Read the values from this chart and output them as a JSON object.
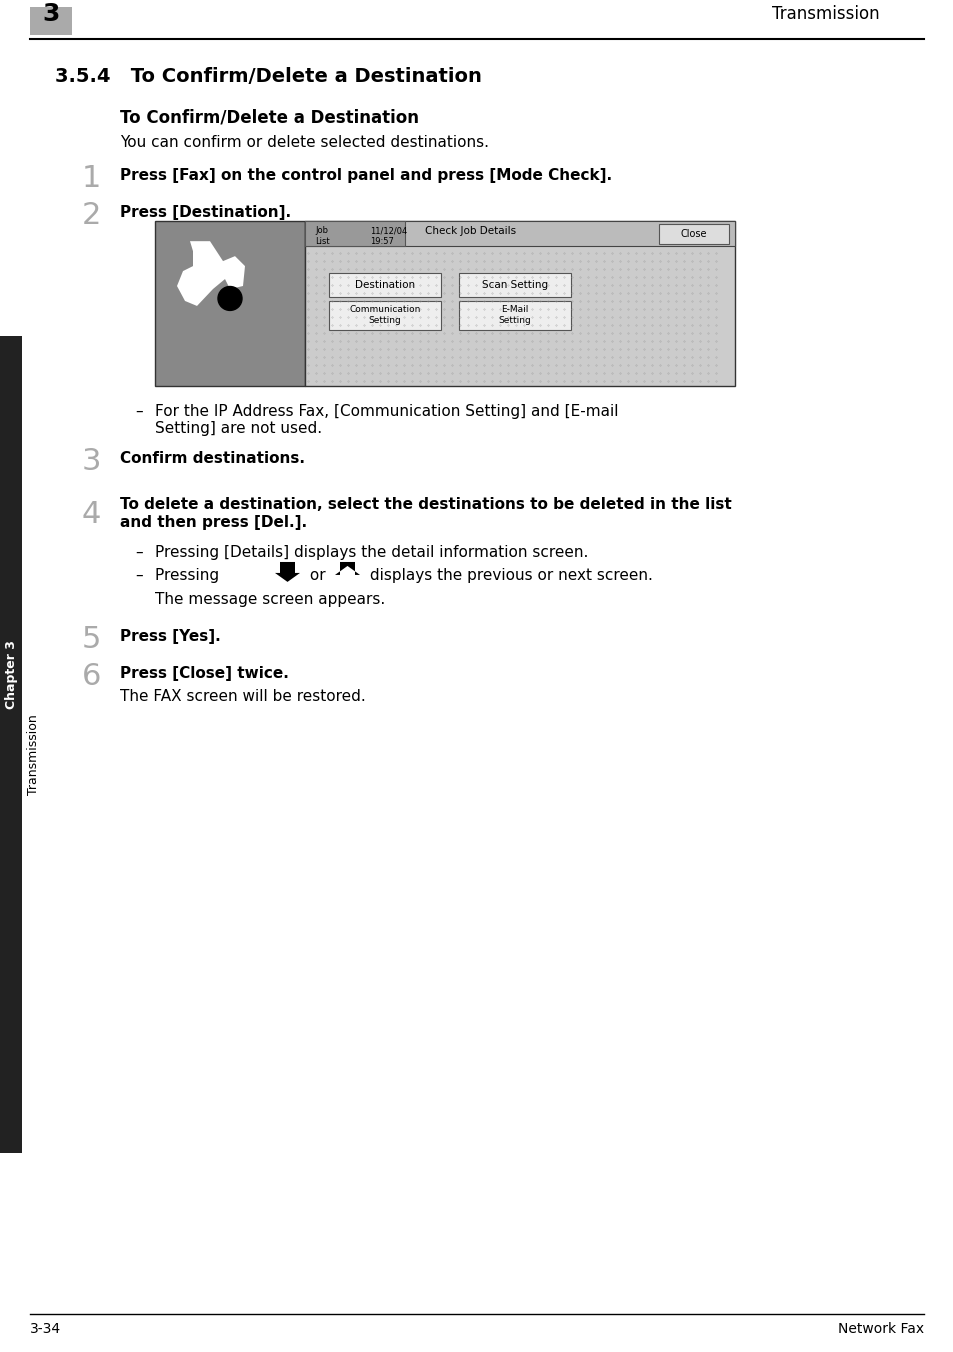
{
  "page_bg": "#ffffff",
  "header_text": "Transmission",
  "header_num": "3",
  "header_num_bg": "#aaaaaa",
  "section_title": "3.5.4   To Confirm/Delete a Destination",
  "subsection_title": "To Confirm/Delete a Destination",
  "intro_text": "You can confirm or delete selected destinations.",
  "step1_num": "1",
  "step1_text": "Press [Fax] on the control panel and press [Mode Check].",
  "step2_num": "2",
  "step2_text": "Press [Destination].",
  "step3_num": "3",
  "step3_text": "Confirm destinations.",
  "step4_num": "4",
  "step4_text": "To delete a destination, select the destinations to be deleted in the list\nand then press [Del.].",
  "step4_bullet1": "Pressing [Details] displays the detail information screen.",
  "step4_bullet2": "displays the previous or next screen.",
  "step4_note": "The message screen appears.",
  "step5_num": "5",
  "step5_text": "Press [Yes].",
  "step6_num": "6",
  "step6_text": "Press [Close] twice.",
  "step6_note": "The FAX screen will be restored.",
  "ip_note": "For the IP Address Fax, [Communication Setting] and [E-mail\nSetting] are not used.",
  "sidebar_text": "Transmission",
  "sidebar_chapter": "Chapter 3",
  "footer_left": "3-34",
  "footer_right": "Network Fax"
}
